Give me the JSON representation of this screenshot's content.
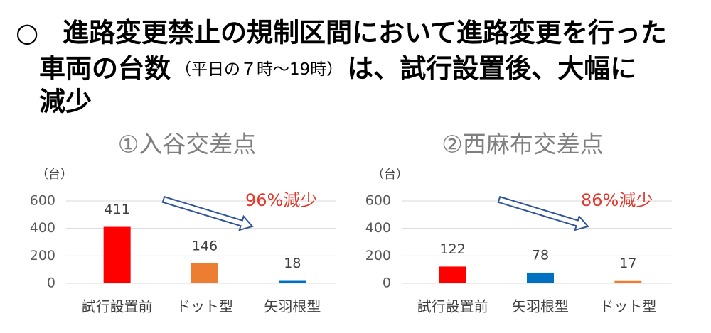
{
  "bullet": "○",
  "heading": [
    "進路変更禁止の規制区間において進路変更を行った",
    "車両の台数",
    "（平日の７時～19時）",
    "は、試行設置後、大幅に",
    "減少"
  ],
  "chart_data": [
    {
      "type": "bar",
      "title": "①入谷交差点",
      "ylabel": "（台）",
      "categories": [
        "試行設置前",
        "ドット型",
        "矢羽根型"
      ],
      "values": [
        411,
        146,
        18
      ],
      "colors": [
        "#ff0000",
        "#ed7d31",
        "#0070c0"
      ],
      "ylim": [
        0,
        600
      ],
      "yticks": [
        0,
        200,
        400,
        600
      ],
      "grid": true,
      "annotation": "96%減少"
    },
    {
      "type": "bar",
      "title": "②西麻布交差点",
      "ylabel": "（台）",
      "categories": [
        "試行設置前",
        "矢羽根型",
        "ドット型"
      ],
      "values": [
        122,
        78,
        17
      ],
      "colors": [
        "#ff0000",
        "#0070c0",
        "#ed7d31"
      ],
      "ylim": [
        0,
        600
      ],
      "yticks": [
        0,
        200,
        400,
        600
      ],
      "grid": true,
      "annotation": "86%減少"
    }
  ]
}
